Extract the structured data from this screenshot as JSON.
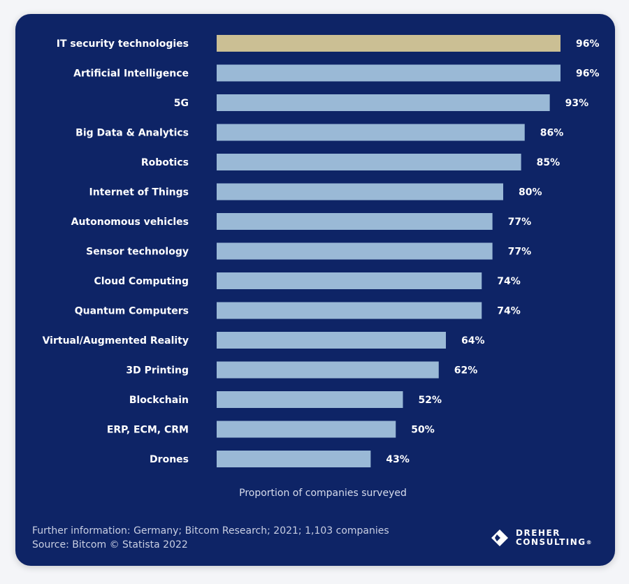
{
  "chart_data": {
    "type": "bar",
    "orientation": "horizontal",
    "categories": [
      "IT security technologies",
      "Artificial Intelligence",
      "5G",
      "Big Data & Analytics",
      "Robotics",
      "Internet of Things",
      "Autonomous vehicles",
      "Sensor technology",
      "Cloud Computing",
      "Quantum Computers",
      "Virtual/Augmented Reality",
      "3D Printing",
      "Blockchain",
      "ERP, ECM, CRM",
      "Drones"
    ],
    "values": [
      96,
      96,
      93,
      86,
      85,
      80,
      77,
      77,
      74,
      74,
      64,
      62,
      52,
      50,
      43
    ],
    "value_labels": [
      "96%",
      "96%",
      "93%",
      "86%",
      "85%",
      "80%",
      "77%",
      "77%",
      "74%",
      "74%",
      "64%",
      "62%",
      "52%",
      "50%",
      "43%"
    ],
    "highlight_index": 0,
    "xlabel": "Proportion of companies surveyed",
    "xlim": [
      0,
      100
    ],
    "grid": false
  },
  "colors": {
    "background": "#0e2466",
    "bar": "#9ab9d6",
    "highlight_bar": "#cbbf94",
    "highlight_text": "#d9cd9d",
    "text": "#ffffff"
  },
  "footer": {
    "info": "Further information:  Germany; Bitcom Research; 2021; 1,103 companies",
    "source": "Source: Bitcom © Statista 2022"
  },
  "logo": {
    "line1": "DREHER",
    "line2": "CONSULTING",
    "reg": "®",
    "icon": "diamond-logo-icon"
  }
}
